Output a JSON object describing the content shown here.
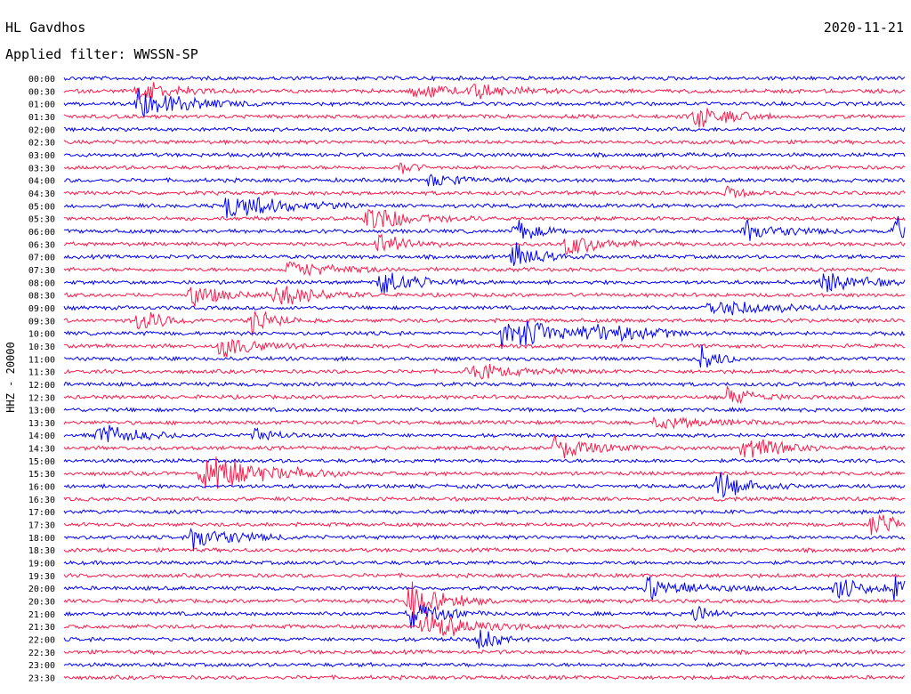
{
  "header": {
    "station": "HL Gavdhos",
    "filter": "Applied filter: WWSSN-SP",
    "date": "2020-11-21",
    "channel": "HHZ - 20000"
  },
  "colors": {
    "even_rows": "#0000ff",
    "odd_rows": "#ff1a4a",
    "background": "#ffffff",
    "text": "#000000"
  },
  "chart_data": {
    "type": "line",
    "title": "HL Gavdhos",
    "ylabel": "HHZ - 20000",
    "row_labels": [
      "00:00",
      "00:30",
      "01:00",
      "01:30",
      "02:00",
      "02:30",
      "03:00",
      "03:30",
      "04:00",
      "04:30",
      "05:00",
      "05:30",
      "06:00",
      "06:30",
      "07:00",
      "07:30",
      "08:00",
      "08:30",
      "09:00",
      "09:30",
      "10:00",
      "10:30",
      "11:00",
      "11:30",
      "12:00",
      "12:30",
      "13:00",
      "13:30",
      "14:00",
      "14:30",
      "15:00",
      "15:30",
      "16:00",
      "16:30",
      "17:00",
      "17:30",
      "18:00",
      "18:30",
      "19:00",
      "19:30",
      "20:00",
      "20:30",
      "21:00",
      "21:30",
      "22:00",
      "22:30",
      "23:00",
      "23:30"
    ],
    "row_minutes": 30,
    "events": [
      {
        "row": 1,
        "minute": 2.6,
        "amp": 1.1,
        "dur": 1.2
      },
      {
        "row": 2,
        "minute": 2.6,
        "amp": 1.5,
        "dur": 1.5
      },
      {
        "row": 1,
        "minute": 12.5,
        "amp": 1.0,
        "dur": 0.8
      },
      {
        "row": 1,
        "minute": 14.5,
        "amp": 0.7,
        "dur": 1.4
      },
      {
        "row": 3,
        "minute": 22.5,
        "amp": 1.4,
        "dur": 1.0
      },
      {
        "row": 7,
        "minute": 12.0,
        "amp": 0.6,
        "dur": 0.5
      },
      {
        "row": 8,
        "minute": 12.9,
        "amp": 0.6,
        "dur": 1.2
      },
      {
        "row": 9,
        "minute": 23.6,
        "amp": 0.6,
        "dur": 0.6
      },
      {
        "row": 10,
        "minute": 5.8,
        "amp": 1.4,
        "dur": 1.6
      },
      {
        "row": 11,
        "minute": 10.8,
        "amp": 1.3,
        "dur": 1.4
      },
      {
        "row": 12,
        "minute": 16.1,
        "amp": 1.0,
        "dur": 0.8
      },
      {
        "row": 12,
        "minute": 24.3,
        "amp": 1.1,
        "dur": 1.2
      },
      {
        "row": 12,
        "minute": 29.6,
        "amp": 1.4,
        "dur": 0.8
      },
      {
        "row": 13,
        "minute": 11.2,
        "amp": 1.2,
        "dur": 0.9
      },
      {
        "row": 13,
        "minute": 17.9,
        "amp": 1.1,
        "dur": 1.1
      },
      {
        "row": 14,
        "minute": 16.0,
        "amp": 1.2,
        "dur": 0.9
      },
      {
        "row": 15,
        "minute": 8.0,
        "amp": 0.8,
        "dur": 1.5
      },
      {
        "row": 16,
        "minute": 11.3,
        "amp": 1.4,
        "dur": 1.0
      },
      {
        "row": 16,
        "minute": 27.0,
        "amp": 1.1,
        "dur": 1.2
      },
      {
        "row": 17,
        "minute": 4.5,
        "amp": 1.1,
        "dur": 1.0
      },
      {
        "row": 17,
        "minute": 7.5,
        "amp": 1.3,
        "dur": 1.2
      },
      {
        "row": 18,
        "minute": 23.0,
        "amp": 0.9,
        "dur": 1.8
      },
      {
        "row": 19,
        "minute": 2.6,
        "amp": 1.3,
        "dur": 0.8
      },
      {
        "row": 19,
        "minute": 6.7,
        "amp": 1.1,
        "dur": 0.8
      },
      {
        "row": 20,
        "minute": 15.6,
        "amp": 1.5,
        "dur": 2.2
      },
      {
        "row": 20,
        "minute": 18.6,
        "amp": 0.9,
        "dur": 1.6
      },
      {
        "row": 21,
        "minute": 5.6,
        "amp": 1.2,
        "dur": 1.0
      },
      {
        "row": 22,
        "minute": 22.7,
        "amp": 1.5,
        "dur": 0.6
      },
      {
        "row": 23,
        "minute": 14.4,
        "amp": 0.8,
        "dur": 1.4
      },
      {
        "row": 25,
        "minute": 23.6,
        "amp": 1.1,
        "dur": 0.8
      },
      {
        "row": 27,
        "minute": 21.1,
        "amp": 0.6,
        "dur": 1.6
      },
      {
        "row": 28,
        "minute": 1.2,
        "amp": 1.3,
        "dur": 1.1
      },
      {
        "row": 28,
        "minute": 6.8,
        "amp": 0.8,
        "dur": 0.6
      },
      {
        "row": 29,
        "minute": 17.5,
        "amp": 1.4,
        "dur": 1.1
      },
      {
        "row": 29,
        "minute": 24.2,
        "amp": 1.3,
        "dur": 1.0
      },
      {
        "row": 31,
        "minute": 4.9,
        "amp": 2.2,
        "dur": 1.8
      },
      {
        "row": 32,
        "minute": 23.3,
        "amp": 1.4,
        "dur": 1.0
      },
      {
        "row": 35,
        "minute": 28.8,
        "amp": 1.4,
        "dur": 0.8
      },
      {
        "row": 36,
        "minute": 4.6,
        "amp": 1.5,
        "dur": 1.2
      },
      {
        "row": 40,
        "minute": 20.8,
        "amp": 1.2,
        "dur": 1.4
      },
      {
        "row": 40,
        "minute": 27.5,
        "amp": 1.2,
        "dur": 0.9
      },
      {
        "row": 40,
        "minute": 29.6,
        "amp": 1.2,
        "dur": 0.8
      },
      {
        "row": 41,
        "minute": 12.3,
        "amp": 1.8,
        "dur": 1.1
      },
      {
        "row": 42,
        "minute": 12.3,
        "amp": 1.3,
        "dur": 1.0
      },
      {
        "row": 42,
        "minute": 22.5,
        "amp": 0.9,
        "dur": 0.5
      },
      {
        "row": 43,
        "minute": 12.8,
        "amp": 1.4,
        "dur": 1.5
      },
      {
        "row": 44,
        "minute": 14.8,
        "amp": 1.2,
        "dur": 0.6
      }
    ]
  }
}
